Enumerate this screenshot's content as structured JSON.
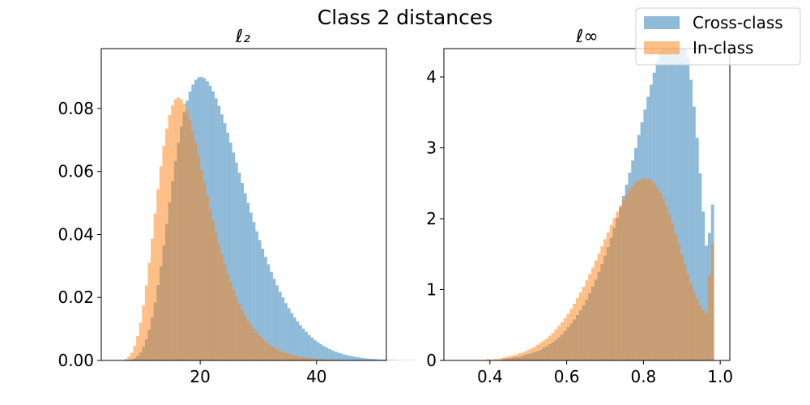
{
  "figure": {
    "title": "Class 2 distances"
  },
  "legend": {
    "placement": "top-right",
    "entries": [
      {
        "label": "Cross-class",
        "color": "#1f77b4"
      },
      {
        "label": "In-class",
        "color": "#ff7f0e"
      }
    ]
  },
  "chart_data": [
    {
      "type": "bar",
      "subtitle": "ℓ₂",
      "xlim": [
        3,
        52
      ],
      "ylim": [
        0,
        0.099
      ],
      "xticks": [
        20,
        40
      ],
      "xtick_labels": [
        "20",
        "40"
      ],
      "yticks": [
        0,
        0.02,
        0.04,
        0.06,
        0.08
      ],
      "ytick_labels": [
        "0.00",
        "0.02",
        "0.04",
        "0.06",
        "0.08"
      ],
      "bin_start": 5.0,
      "bin_width": 0.5,
      "series": [
        {
          "name": "Cross-class",
          "color": "#1f77b4",
          "values": [
            0,
            0,
            0,
            0,
            0,
            0,
            0.0003,
            0.0007,
            0.0014,
            0.0026,
            0.0043,
            0.0067,
            0.0098,
            0.0137,
            0.0184,
            0.0239,
            0.0299,
            0.0365,
            0.0433,
            0.0502,
            0.0569,
            0.0633,
            0.0691,
            0.0743,
            0.0788,
            0.0825,
            0.0854,
            0.0876,
            0.0891,
            0.0899,
            0.09,
            0.0896,
            0.0886,
            0.0872,
            0.0854,
            0.0832,
            0.0808,
            0.0781,
            0.0753,
            0.0723,
            0.0692,
            0.066,
            0.0628,
            0.0596,
            0.0563,
            0.0531,
            0.05,
            0.0469,
            0.0439,
            0.041,
            0.0382,
            0.0355,
            0.0329,
            0.0305,
            0.0281,
            0.0259,
            0.0238,
            0.0218,
            0.02,
            0.0182,
            0.0166,
            0.0151,
            0.0137,
            0.0124,
            0.0112,
            0.0101,
            0.0091,
            0.0081,
            0.0073,
            0.0065,
            0.0058,
            0.0052,
            0.0046,
            0.0041,
            0.0036,
            0.0032,
            0.0028,
            0.0025,
            0.0022,
            0.0019,
            0.0017,
            0.0015,
            0.0013,
            0.0011,
            0.001,
            0.0008,
            0.0007,
            0.0006,
            0.0005,
            0.0005,
            0.0004,
            0.0003,
            0.0003,
            0.0003,
            0.0002,
            0.0002,
            0.0002,
            0.0001,
            0.0001,
            0.0001,
            0.0001,
            0.0001,
            0.0001,
            0.0001,
            0,
            0,
            0,
            0,
            0,
            0,
            0,
            0,
            0,
            0,
            0,
            0,
            0,
            0,
            0,
            0
          ]
        },
        {
          "name": "In-class",
          "color": "#ff7f0e",
          "values": [
            0,
            0,
            0,
            0,
            0.0005,
            0.0012,
            0.0025,
            0.0046,
            0.0077,
            0.012,
            0.0174,
            0.0238,
            0.031,
            0.0387,
            0.0466,
            0.0544,
            0.0616,
            0.0681,
            0.0736,
            0.0779,
            0.081,
            0.0829,
            0.0835,
            0.083,
            0.0816,
            0.0793,
            0.0763,
            0.0728,
            0.069,
            0.0649,
            0.0607,
            0.0565,
            0.0523,
            0.0482,
            0.0443,
            0.0405,
            0.037,
            0.0336,
            0.0305,
            0.0276,
            0.0249,
            0.0224,
            0.0201,
            0.018,
            0.0161,
            0.0143,
            0.0127,
            0.0113,
            0.01,
            0.0088,
            0.0078,
            0.0069,
            0.0061,
            0.0053,
            0.0047,
            0.0041,
            0.0036,
            0.0031,
            0.0027,
            0.0024,
            0.0021,
            0.0018,
            0.0016,
            0.0014,
            0.0012,
            0.001,
            0.0009,
            0.0008,
            0.0007,
            0.0006,
            0.0005,
            0.0004,
            0.0004,
            0.0003,
            0.0003,
            0.0002,
            0.0002,
            0.0002,
            0.0001,
            0.0001,
            0.0001,
            0.0001,
            0.0001,
            0.0001,
            0.0001,
            0,
            0,
            0,
            0,
            0,
            0,
            0,
            0,
            0,
            0,
            0,
            0,
            0,
            0,
            0,
            0,
            0,
            0,
            0,
            0,
            0,
            0,
            0,
            0,
            0,
            0,
            0,
            0,
            0,
            0,
            0,
            0,
            0,
            0,
            0
          ]
        }
      ]
    },
    {
      "type": "bar",
      "subtitle": "ℓ∞",
      "xlim": [
        0.28,
        1.025
      ],
      "ylim": [
        0,
        4.4
      ],
      "xticks": [
        0.4,
        0.6,
        0.8,
        1.0
      ],
      "xtick_labels": [
        "0.4",
        "0.6",
        "0.8",
        "1.0"
      ],
      "yticks": [
        0,
        1,
        2,
        3,
        4
      ],
      "ytick_labels": [
        "0",
        "1",
        "2",
        "3",
        "4"
      ],
      "bin_start": 0.36,
      "bin_width": 0.008,
      "series": [
        {
          "name": "Cross-class",
          "color": "#1f77b4",
          "values": [
            0,
            0,
            0,
            0,
            0,
            0,
            0,
            0,
            0,
            0.02,
            0.03,
            0.03,
            0.04,
            0.05,
            0.05,
            0.06,
            0.08,
            0.09,
            0.1,
            0.12,
            0.13,
            0.15,
            0.18,
            0.2,
            0.23,
            0.26,
            0.29,
            0.33,
            0.37,
            0.42,
            0.47,
            0.52,
            0.58,
            0.64,
            0.71,
            0.78,
            0.86,
            0.95,
            1.04,
            1.14,
            1.25,
            1.36,
            1.48,
            1.6,
            1.73,
            1.87,
            2.01,
            2.16,
            2.32,
            2.48,
            2.65,
            2.82,
            3.0,
            3.18,
            3.36,
            3.54,
            3.72,
            3.89,
            4.06,
            4.22,
            4.37,
            4.5,
            4.62,
            4.7,
            4.76,
            4.78,
            4.74,
            4.65,
            4.5,
            4.27,
            3.96,
            3.58,
            3.14,
            2.64,
            2.1,
            1.62,
            1.8,
            2.2
          ]
        },
        {
          "name": "In-class",
          "color": "#ff7f0e",
          "values": [
            0,
            0,
            0,
            0,
            0.02,
            0.01,
            0.02,
            0.02,
            0.03,
            0.04,
            0.05,
            0.06,
            0.07,
            0.08,
            0.1,
            0.11,
            0.13,
            0.15,
            0.17,
            0.19,
            0.22,
            0.25,
            0.28,
            0.31,
            0.35,
            0.39,
            0.44,
            0.49,
            0.54,
            0.6,
            0.66,
            0.73,
            0.8,
            0.88,
            0.96,
            1.04,
            1.13,
            1.22,
            1.31,
            1.41,
            1.51,
            1.61,
            1.71,
            1.81,
            1.91,
            2.01,
            2.1,
            2.19,
            2.27,
            2.34,
            2.41,
            2.46,
            2.51,
            2.54,
            2.56,
            2.57,
            2.56,
            2.54,
            2.5,
            2.44,
            2.37,
            2.28,
            2.18,
            2.06,
            1.93,
            1.79,
            1.65,
            1.5,
            1.36,
            1.22,
            1.09,
            0.97,
            0.87,
            0.78,
            0.71,
            0.66,
            1.2,
            1.65
          ]
        }
      ]
    }
  ]
}
